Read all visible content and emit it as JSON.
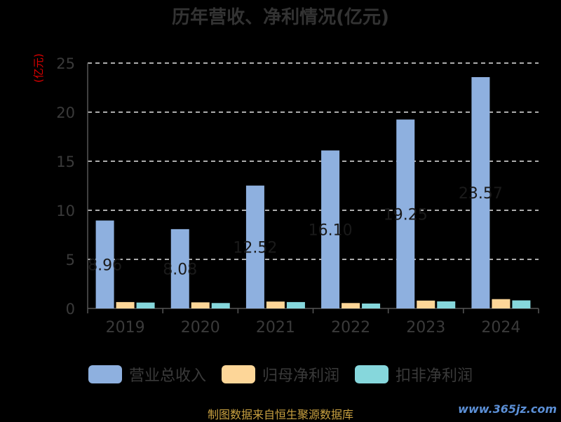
{
  "chart_data": {
    "type": "bar",
    "title": "历年营收、净利情况(亿元)",
    "ylabel": "(亿元)",
    "categories": [
      "2019",
      "2020",
      "2021",
      "2022",
      "2023",
      "2024"
    ],
    "ylim": [
      0,
      25
    ],
    "yticks": [
      0,
      5,
      10,
      15,
      20,
      25
    ],
    "grid": true,
    "legend_position": "bottom",
    "series": [
      {
        "name": "营业总收入",
        "color": "#8eb0df",
        "values": [
          8.96,
          8.08,
          12.52,
          16.1,
          19.25,
          23.57
        ],
        "data_labels": [
          "8.96",
          "8.08",
          "12.52",
          "16.10",
          "19.25",
          "23.57"
        ]
      },
      {
        "name": "归母净利润",
        "color": "#fdd698",
        "values": [
          0.65,
          0.62,
          0.7,
          0.55,
          0.8,
          0.95
        ]
      },
      {
        "name": "扣非净利润",
        "color": "#86d7dc",
        "values": [
          0.6,
          0.55,
          0.65,
          0.5,
          0.72,
          0.82
        ]
      }
    ]
  },
  "footer": "制图数据来自恒生聚源数据库",
  "watermark": "www.365jz.com"
}
